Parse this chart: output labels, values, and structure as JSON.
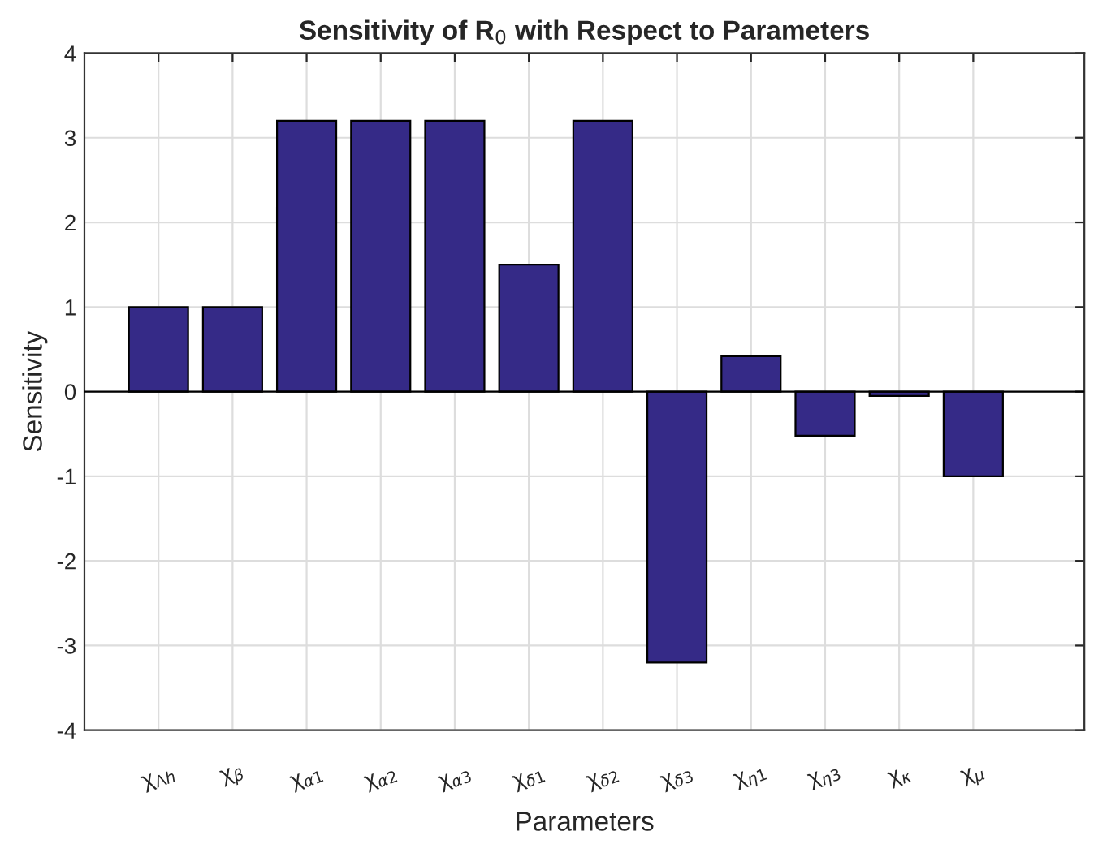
{
  "chart_data": {
    "type": "bar",
    "title": "Sensitivity of R$_{0}$ with Respect to Parameters",
    "xlabel": "Parameters",
    "ylabel": "Sensitivity",
    "categories": [
      "χ$_{Λh}$",
      "χ$_{β}$",
      "χ$_{α1}$",
      "χ$_{α2}$",
      "χ$_{α3}$",
      "χ$_{δ1}$",
      "χ$_{δ2}$",
      "χ$_{δ3}$",
      "χ$_{η1}$",
      "χ$_{η3}$",
      "χ$_{κ}$",
      "χ$_{μ}$"
    ],
    "values": [
      1,
      1,
      3.2,
      3.2,
      3.2,
      1.5,
      3.2,
      -3.2,
      0.42,
      -0.52,
      -0.05,
      -1.0
    ],
    "color": "#352a87",
    "ylim": [
      -4,
      4
    ],
    "yticks": [
      -4,
      -3,
      -2,
      -1,
      0,
      1,
      2,
      3,
      4
    ],
    "grid": true
  }
}
